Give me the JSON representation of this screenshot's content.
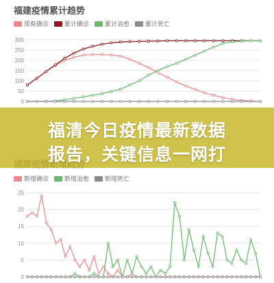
{
  "chart_data": [
    {
      "type": "line",
      "title": "福建疫情累计趋势",
      "yticks": [
        0,
        50,
        100,
        150,
        200,
        250,
        300
      ],
      "ylim": [
        0,
        300
      ],
      "grid": true,
      "legend_position": "top-left",
      "series": [
        {
          "name": "现有确诊",
          "color": "#e8898d",
          "values": [
            80,
            112,
            145,
            175,
            200,
            215,
            225,
            228,
            228,
            226,
            220,
            205,
            185,
            165,
            140,
            118,
            95,
            75,
            58,
            42,
            30,
            18,
            10,
            5,
            2,
            0
          ]
        },
        {
          "name": "累计确诊",
          "color": "#8b1a22",
          "values": [
            80,
            112,
            145,
            178,
            210,
            235,
            255,
            268,
            278,
            285,
            289,
            291,
            292,
            293,
            294,
            295,
            295,
            295,
            295,
            295,
            295,
            295,
            295,
            295,
            295,
            295
          ]
        },
        {
          "name": "累计治愈",
          "color": "#6db86f",
          "values": [
            0,
            0,
            0,
            2,
            8,
            15,
            22,
            30,
            38,
            48,
            60,
            80,
            100,
            128,
            150,
            170,
            185,
            205,
            225,
            245,
            265,
            282,
            290,
            293,
            295,
            295
          ]
        },
        {
          "name": "累计死亡",
          "color": "#8a8a8a",
          "values": [
            0,
            0,
            0,
            0,
            0,
            0,
            0,
            0,
            0,
            0,
            0,
            0,
            0,
            0,
            0,
            0,
            0,
            0,
            0,
            0,
            0,
            0,
            0,
            0,
            0,
            0
          ]
        }
      ]
    },
    {
      "type": "line",
      "title": "福建疫情新增趋势",
      "yticks": [
        0,
        5,
        10,
        15,
        20,
        25
      ],
      "ylim": [
        0,
        25
      ],
      "grid": true,
      "legend_position": "top-left",
      "series": [
        {
          "name": "新增确诊",
          "color": "#e8898d",
          "values": [
            18,
            19,
            18,
            24,
            16,
            14,
            10,
            11,
            6,
            9,
            5,
            3,
            5,
            2,
            6,
            1,
            3,
            1,
            0,
            2,
            0,
            0,
            1,
            0,
            0,
            0,
            0,
            0,
            0,
            0,
            0,
            0,
            0,
            0,
            0,
            0,
            0,
            0,
            0,
            0,
            0,
            0,
            0,
            0,
            0,
            0,
            0,
            0,
            0,
            0
          ]
        },
        {
          "name": "新增治愈",
          "color": "#6db86f",
          "values": [
            0,
            0,
            0,
            0,
            0,
            0,
            0,
            0,
            0,
            0,
            1,
            0,
            0,
            0,
            1,
            0,
            0,
            10,
            3,
            5,
            0,
            5,
            1,
            6,
            3,
            1,
            3,
            0,
            2,
            1,
            3,
            22,
            18,
            5,
            14,
            8,
            3,
            12,
            7,
            3,
            13,
            12,
            5,
            4,
            8,
            5,
            4,
            11,
            7,
            0
          ]
        },
        {
          "name": "新增死亡",
          "color": "#8a8a8a",
          "values": [
            0,
            0,
            0,
            0,
            0,
            0,
            0,
            0,
            0,
            0,
            0,
            0,
            0,
            0,
            0,
            0,
            0,
            0,
            0,
            0,
            0,
            0,
            0,
            0,
            0,
            0,
            0,
            0,
            0,
            0,
            0,
            0,
            0,
            0,
            0,
            0,
            0,
            0,
            0,
            0,
            0,
            0,
            0,
            0,
            0,
            0,
            0,
            0,
            0,
            0
          ]
        }
      ]
    }
  ],
  "banner": {
    "line1": "福清今日疫情最新数据",
    "line2": "报告，关键信息一网打"
  },
  "colors": {
    "banner_bg": "#c8b92d",
    "grid": "#e6e6e6",
    "axis_text": "#888888"
  }
}
